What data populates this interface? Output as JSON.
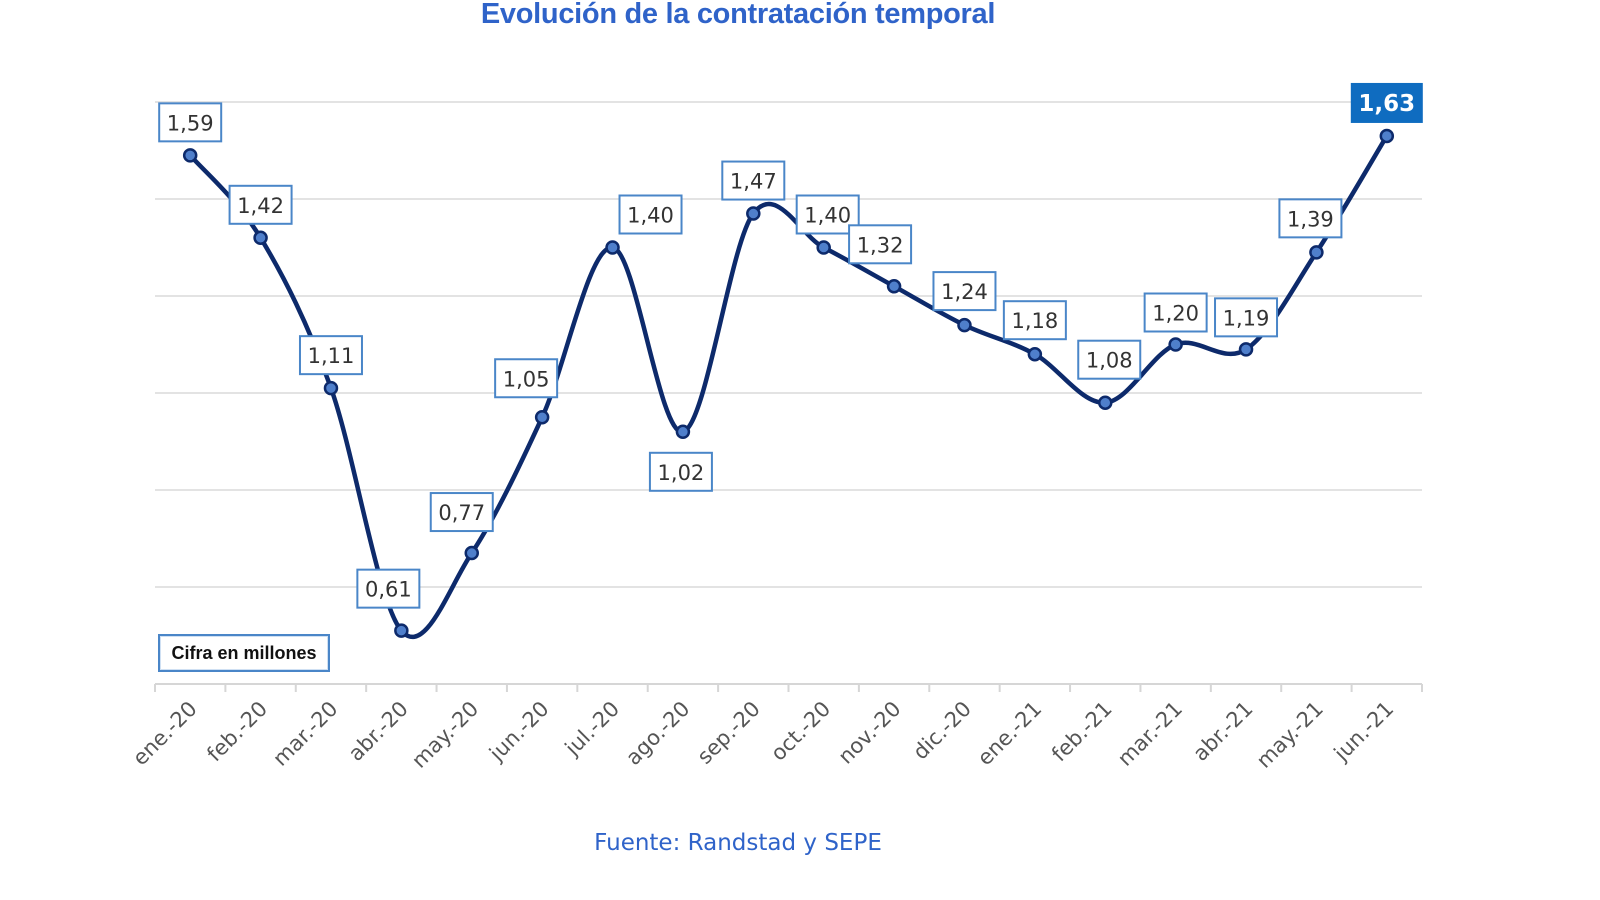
{
  "chart_data": {
    "type": "line",
    "title": "Evolución de la contratación temporal",
    "xlabel": "",
    "ylabel": "",
    "unit_note": "Cifra en millones",
    "source": "Fuente: Randstad y SEPE",
    "categories": [
      "ene.-20",
      "feb.-20",
      "mar.-20",
      "abr.-20",
      "may.-20",
      "jun.-20",
      "jul.-20",
      "ago.-20",
      "sep.-20",
      "oct.-20",
      "nov.-20",
      "dic.-20",
      "ene.-21",
      "feb.-21",
      "mar.-21",
      "abr.-21",
      "may.-21",
      "jun.-21"
    ],
    "series": [
      {
        "name": "Contratación temporal",
        "values": [
          1.59,
          1.42,
          1.11,
          0.61,
          0.77,
          1.05,
          1.4,
          1.02,
          1.47,
          1.4,
          1.32,
          1.24,
          1.18,
          1.08,
          1.2,
          1.19,
          1.39,
          1.63
        ],
        "labels": [
          "1,59",
          "1,42",
          "1,11",
          "0,61",
          "0,77",
          "1,05",
          "1,40",
          "1,02",
          "1,47",
          "1,40",
          "1,32",
          "1,24",
          "1,18",
          "1,08",
          "1,20",
          "1,19",
          "1,39",
          "1,63"
        ],
        "highlight_last": true,
        "smooth": true
      }
    ],
    "ylim": [
      0.5,
      1.7
    ],
    "grid": true,
    "y_tick_labels_shown": false,
    "legend": "none",
    "colors": {
      "line": "#0d2a6b",
      "marker": "#4f7fcb",
      "label_border": "#4a86c8",
      "highlight": "#0f6cc0",
      "title": "#2f63c9"
    }
  }
}
